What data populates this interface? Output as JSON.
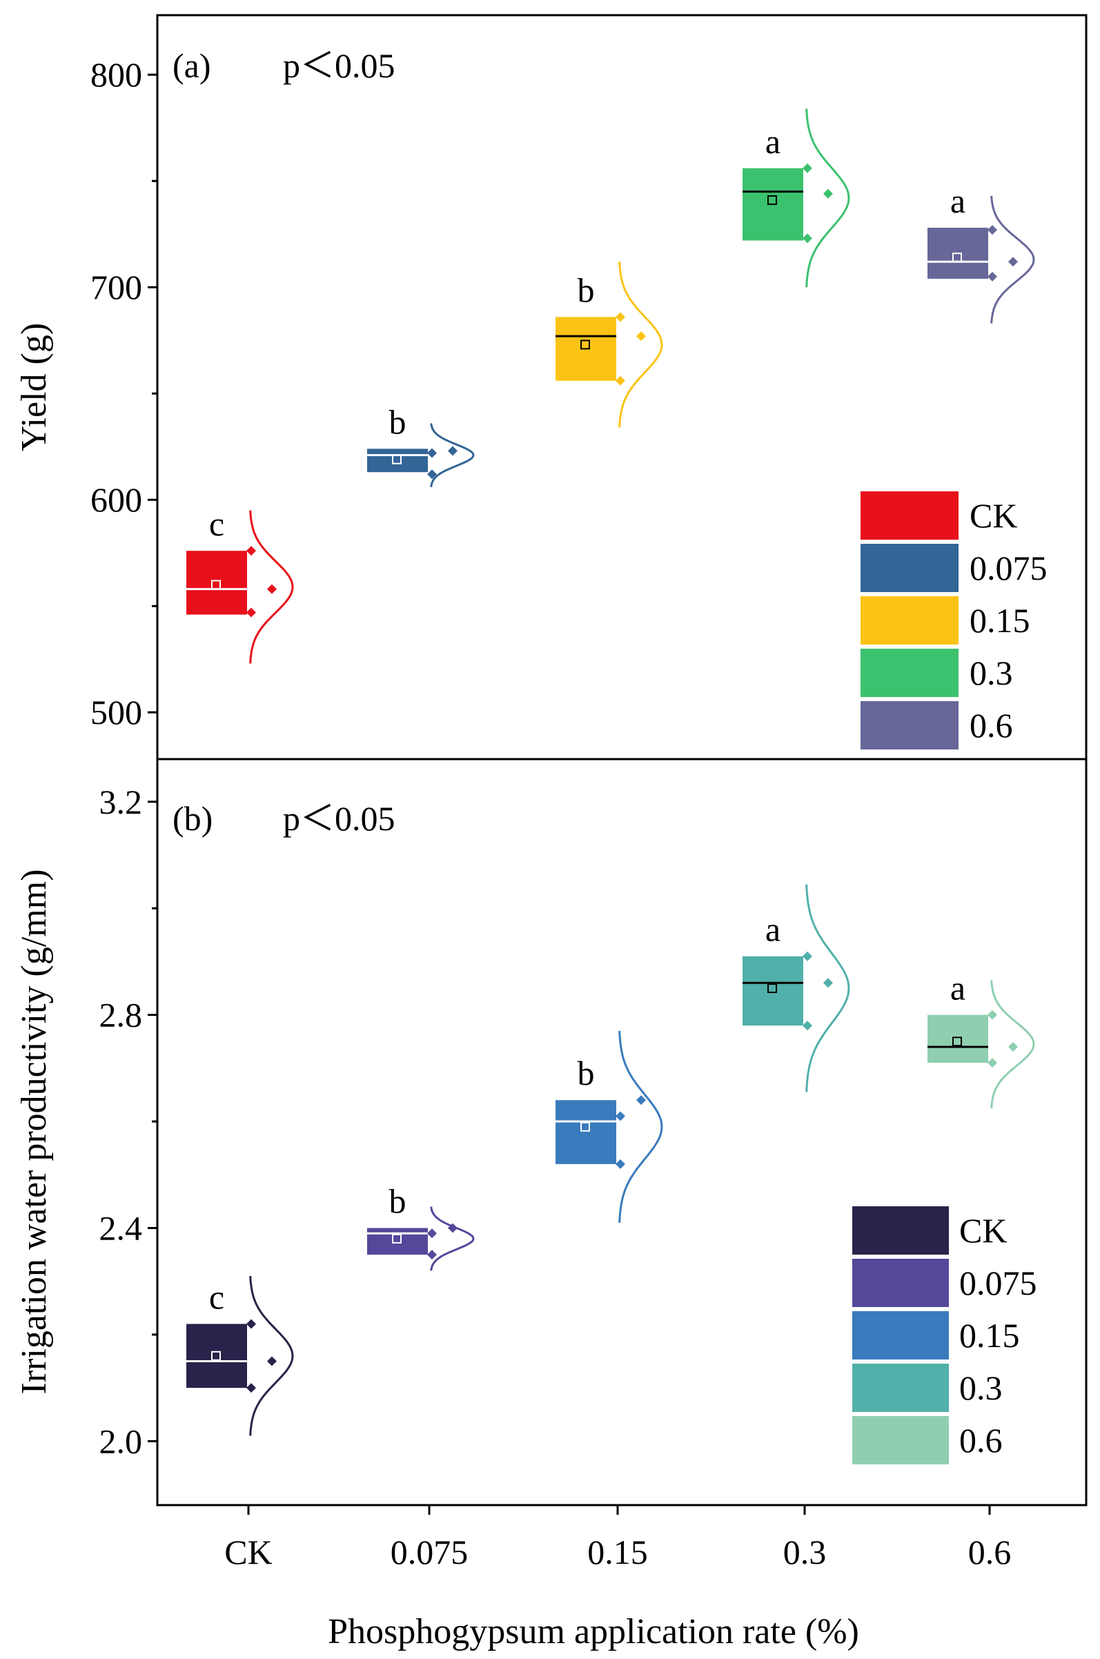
{
  "chart_data": [
    {
      "type": "box",
      "panel_label": "(a)",
      "annotation": "p＜0.05",
      "ylabel": "Yield (g)",
      "ylim": [
        478,
        828
      ],
      "yticks": [
        500,
        600,
        700,
        800
      ],
      "ytick_labels": [
        "500",
        "600",
        "700",
        "800"
      ],
      "categories": [
        "CK",
        "0.075",
        "0.15",
        "0.3",
        "0.6"
      ],
      "colors": [
        "#e8101a",
        "#336596",
        "#fbc315",
        "#3cc26e",
        "#67679a"
      ],
      "series": [
        {
          "category": "CK",
          "q1": 546,
          "q3": 576,
          "median": 558,
          "mean": 560,
          "points": [
            576,
            558,
            547
          ],
          "dist_center": 559,
          "dist_sd": 12,
          "letter": "c"
        },
        {
          "category": "0.075",
          "q1": 613,
          "q3": 624,
          "median": 621,
          "mean": 619,
          "points": [
            622,
            623,
            612
          ],
          "dist_center": 621,
          "dist_sd": 5,
          "letter": "b"
        },
        {
          "category": "0.15",
          "q1": 656,
          "q3": 686,
          "median": 677,
          "mean": 673,
          "points": [
            686,
            677,
            656
          ],
          "dist_center": 673,
          "dist_sd": 13,
          "letter": "b"
        },
        {
          "category": "0.3",
          "q1": 722,
          "q3": 756,
          "median": 745,
          "mean": 741,
          "points": [
            756,
            744,
            723
          ],
          "dist_center": 742,
          "dist_sd": 14,
          "letter": "a"
        },
        {
          "category": "0.6",
          "q1": 704,
          "q3": 728,
          "median": 712,
          "mean": 714,
          "points": [
            727,
            712,
            705
          ],
          "dist_center": 713,
          "dist_sd": 10,
          "letter": "a"
        }
      ],
      "legend": {
        "position": "bottom-right",
        "entries": [
          "CK",
          "0.075",
          "0.15",
          "0.3",
          "0.6"
        ]
      }
    },
    {
      "type": "box",
      "panel_label": "(b)",
      "annotation": "p＜0.05",
      "ylabel": "Irrigation water productivity (g/mm)",
      "ylim": [
        1.88,
        3.28
      ],
      "yticks": [
        2.0,
        2.4,
        2.8,
        3.2
      ],
      "ytick_labels": [
        "2.0",
        "2.4",
        "2.8",
        "3.2"
      ],
      "categories": [
        "CK",
        "0.075",
        "0.15",
        "0.3",
        "0.6"
      ],
      "colors": [
        "#27234a",
        "#56479a",
        "#3a7bbd",
        "#52b0aa",
        "#8fcfb0"
      ],
      "series": [
        {
          "category": "CK",
          "q1": 2.1,
          "q3": 2.22,
          "median": 2.15,
          "mean": 2.16,
          "points": [
            2.22,
            2.15,
            2.1
          ],
          "dist_center": 2.16,
          "dist_sd": 0.05,
          "letter": "c"
        },
        {
          "category": "0.075",
          "q1": 2.35,
          "q3": 2.4,
          "median": 2.39,
          "mean": 2.38,
          "points": [
            2.39,
            2.4,
            2.35
          ],
          "dist_center": 2.38,
          "dist_sd": 0.02,
          "letter": "b"
        },
        {
          "category": "0.15",
          "q1": 2.52,
          "q3": 2.64,
          "median": 2.6,
          "mean": 2.59,
          "points": [
            2.61,
            2.64,
            2.52
          ],
          "dist_center": 2.59,
          "dist_sd": 0.06,
          "letter": "b"
        },
        {
          "category": "0.3",
          "q1": 2.78,
          "q3": 2.91,
          "median": 2.86,
          "mean": 2.85,
          "points": [
            2.91,
            2.86,
            2.78
          ],
          "dist_center": 2.85,
          "dist_sd": 0.065,
          "letter": "a"
        },
        {
          "category": "0.6",
          "q1": 2.71,
          "q3": 2.8,
          "median": 2.74,
          "mean": 2.75,
          "points": [
            2.8,
            2.74,
            2.71
          ],
          "dist_center": 2.745,
          "dist_sd": 0.04,
          "letter": "a"
        }
      ],
      "legend": {
        "position": "bottom-right",
        "entries": [
          "CK",
          "0.075",
          "0.15",
          "0.3",
          "0.6"
        ]
      }
    }
  ],
  "xlabel": "Phosphogypsum application rate (%)",
  "xtick_labels": [
    "CK",
    "0.075",
    "0.15",
    "0.3",
    "0.6"
  ]
}
